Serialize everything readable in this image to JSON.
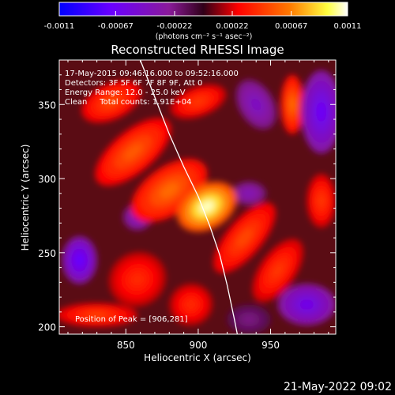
{
  "chart_data": {
    "type": "heatmap",
    "title": "Reconstructed RHESSI Image",
    "xlabel": "Heliocentric X (arcsec)",
    "ylabel": "Heliocentric Y (arcsec)",
    "xlim": [
      804,
      995
    ],
    "ylim": [
      195,
      380
    ],
    "x_ticks": [
      850,
      900,
      950
    ],
    "y_ticks": [
      200,
      250,
      300,
      350
    ],
    "x_tick_labels": [
      "850",
      "900",
      "950"
    ],
    "y_tick_labels": [
      "200",
      "250",
      "300",
      "350"
    ],
    "colorbar": {
      "range": [
        -0.0011,
        0.0011
      ],
      "ticks": [
        -0.0011,
        -0.00067,
        -0.00022,
        0.00022,
        0.00067,
        0.0011
      ],
      "tick_labels": [
        "-0.0011",
        "-0.00067",
        "-0.00022",
        "0.00022",
        "0.00067",
        "0.0011"
      ],
      "units_label": "(photons cm⁻² s⁻¹ asec⁻²)"
    },
    "info_lines": [
      "17-May-2015 09:46:16.000 to 09:52:16.000",
      "Detectors: 3F 5F 6F 7F 8F 9F, Att 0",
      "Energy Range: 12.0 - 25.0 keV",
      "Clean     Total counts: 1.91E+04"
    ],
    "peak_label": "Position of Peak = [906,281]",
    "peak": [
      906,
      281
    ],
    "limb_curve": [
      [
        860,
        380
      ],
      [
        870,
        355
      ],
      [
        880,
        330
      ],
      [
        890,
        308
      ],
      [
        900,
        288
      ],
      [
        908,
        268
      ],
      [
        915,
        248
      ],
      [
        920,
        228
      ],
      [
        925,
        205
      ],
      [
        927,
        195
      ]
    ],
    "blobs": [
      {
        "x": 906,
        "y": 281,
        "rx": 22,
        "ry": 15,
        "v": 0.95,
        "rot": -30
      },
      {
        "x": 880,
        "y": 292,
        "rx": 30,
        "ry": 16,
        "v": 0.55,
        "rot": -35
      },
      {
        "x": 855,
        "y": 318,
        "rx": 32,
        "ry": 14,
        "v": 0.5,
        "rot": -40
      },
      {
        "x": 840,
        "y": 352,
        "rx": 22,
        "ry": 12,
        "v": 0.45,
        "rot": -25
      },
      {
        "x": 900,
        "y": 352,
        "rx": 20,
        "ry": 10,
        "v": 0.4,
        "rot": -20
      },
      {
        "x": 932,
        "y": 260,
        "rx": 30,
        "ry": 12,
        "v": 0.45,
        "rot": -50
      },
      {
        "x": 955,
        "y": 238,
        "rx": 25,
        "ry": 12,
        "v": 0.4,
        "rot": -55
      },
      {
        "x": 965,
        "y": 350,
        "rx": 8,
        "ry": 20,
        "v": 0.55,
        "rot": 0
      },
      {
        "x": 858,
        "y": 232,
        "rx": 20,
        "ry": 18,
        "v": 0.35,
        "rot": -30
      },
      {
        "x": 895,
        "y": 215,
        "rx": 15,
        "ry": 14,
        "v": 0.35,
        "rot": -20
      },
      {
        "x": 830,
        "y": 208,
        "rx": 28,
        "ry": 8,
        "v": 0.42,
        "rot": 0
      },
      {
        "x": 985,
        "y": 285,
        "rx": 10,
        "ry": 18,
        "v": 0.4,
        "rot": 0
      },
      {
        "x": 818,
        "y": 245,
        "rx": 12,
        "ry": 16,
        "v": -0.65,
        "rot": 0
      },
      {
        "x": 985,
        "y": 345,
        "rx": 14,
        "ry": 28,
        "v": -0.6,
        "rot": 0
      },
      {
        "x": 940,
        "y": 350,
        "rx": 12,
        "ry": 18,
        "v": -0.4,
        "rot": -30
      },
      {
        "x": 858,
        "y": 274,
        "rx": 10,
        "ry": 9,
        "v": -0.4,
        "rot": 0
      },
      {
        "x": 975,
        "y": 215,
        "rx": 20,
        "ry": 14,
        "v": -0.55,
        "rot": 0
      },
      {
        "x": 935,
        "y": 290,
        "rx": 12,
        "ry": 8,
        "v": -0.35,
        "rot": 0
      },
      {
        "x": 935,
        "y": 205,
        "rx": 15,
        "ry": 10,
        "v": -0.2,
        "rot": 0
      }
    ]
  },
  "footer": {
    "timestamp": "21-May-2022 09:02"
  },
  "colors": {
    "background": "#000000",
    "text": "#ffffff",
    "limb_line": "#ffffff",
    "colormap": [
      "#0000ff",
      "#6a00ff",
      "#8a1a9a",
      "#300018",
      "#ff0000",
      "#ff7a00",
      "#ffff40",
      "#ffffff"
    ]
  }
}
